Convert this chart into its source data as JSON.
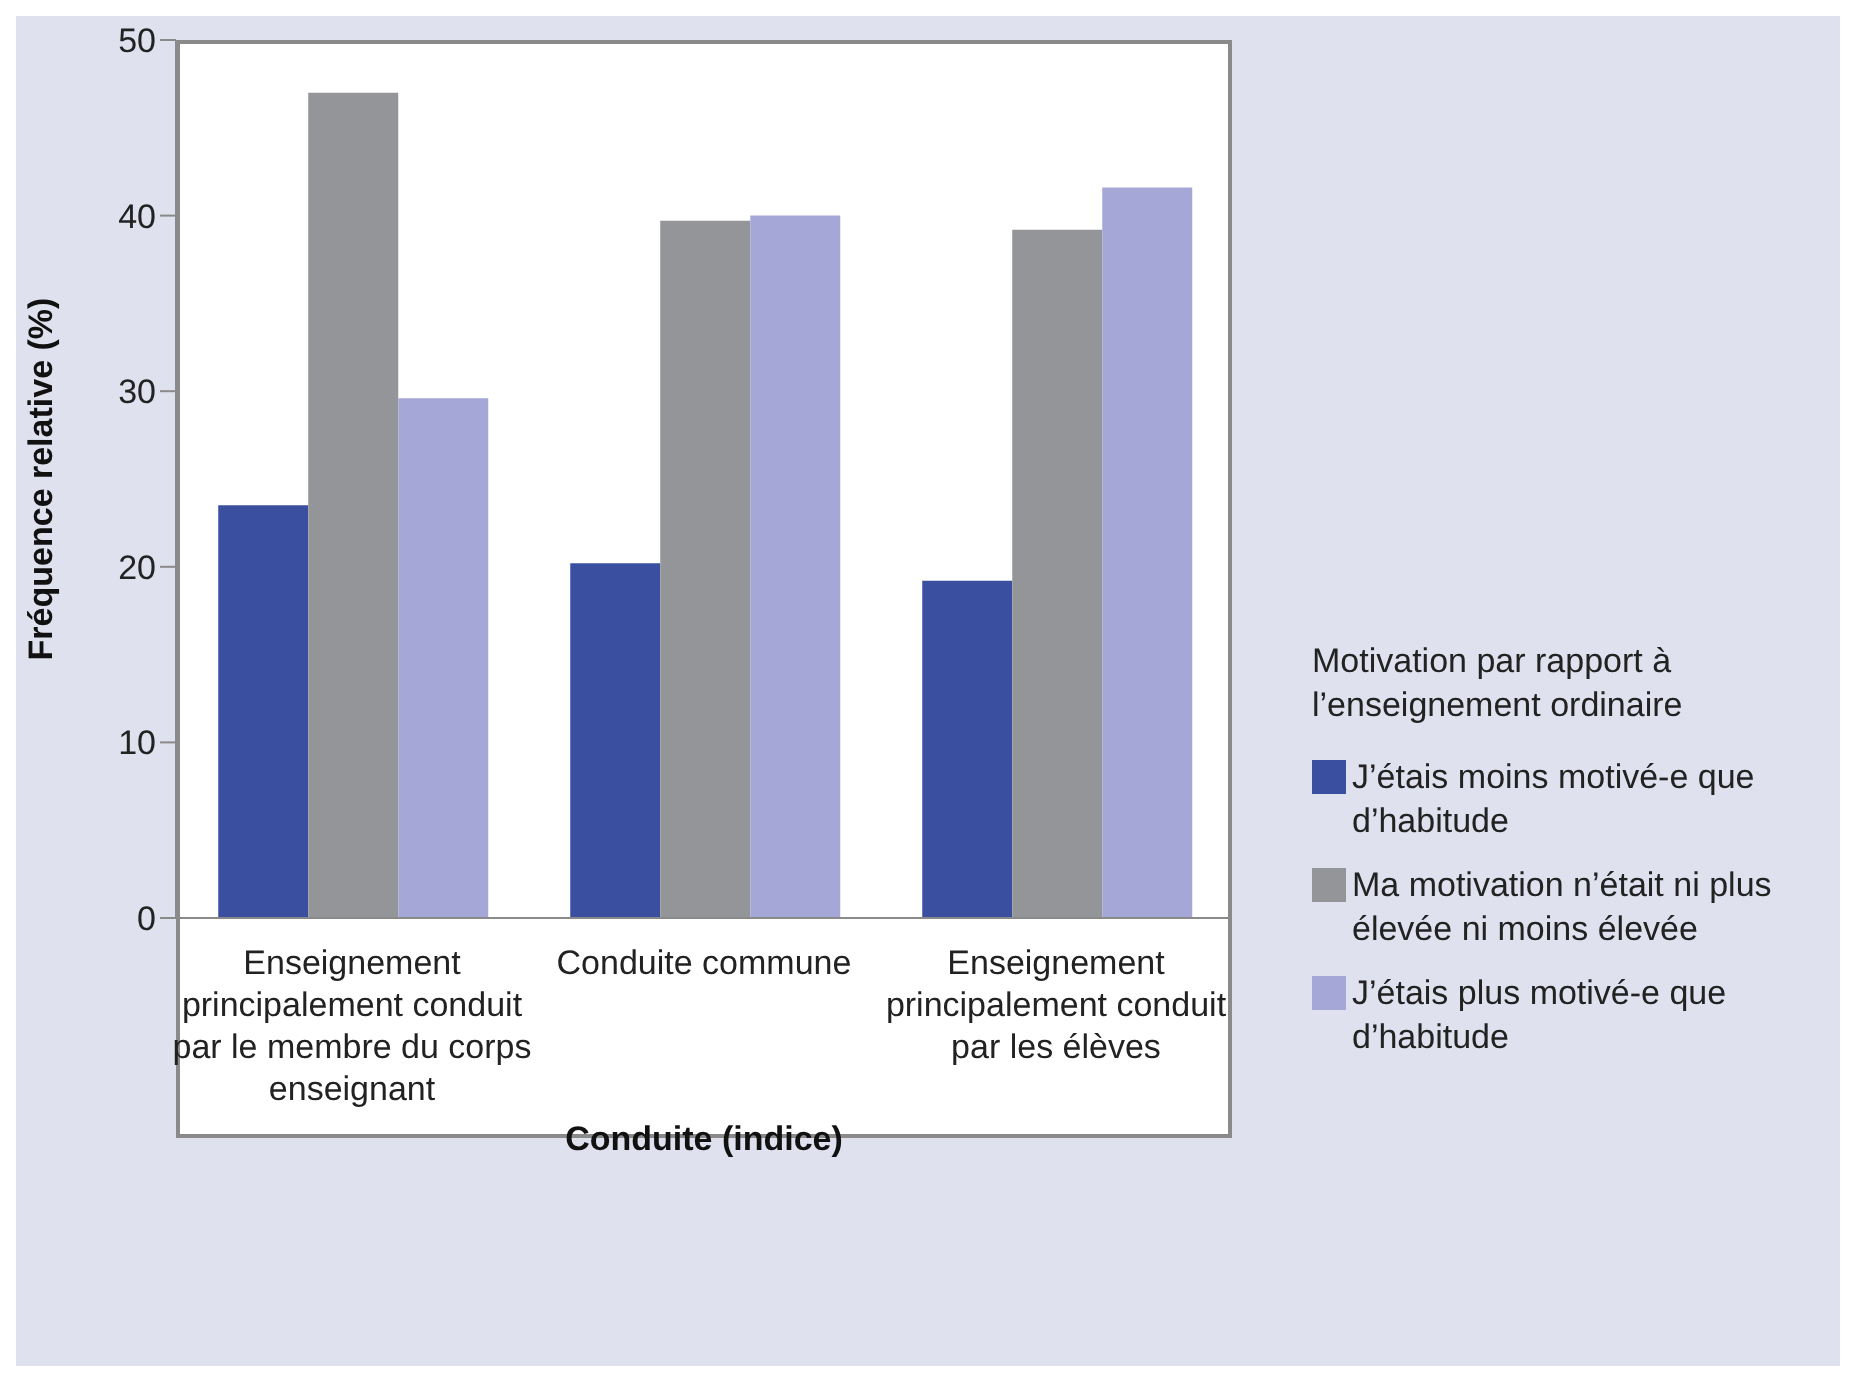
{
  "chart_data": {
    "type": "bar",
    "xlabel": "Conduite (indice)",
    "ylabel": "Fréquence relative (%)",
    "legend_title": "Motivation par rapport à l’enseignement ordinaire",
    "categories": [
      "Enseignement principalement conduit par le membre du corps enseignant",
      "Conduite commune",
      "Enseignement principalement conduit par les élèves"
    ],
    "series": [
      {
        "name": "J’étais moins motivé-e que d’habitude",
        "color": "#3a4fa0",
        "values": [
          23.5,
          20.2,
          19.2
        ]
      },
      {
        "name": "Ma motivation n’était ni plus élevée ni moins élevée",
        "color": "#939598",
        "values": [
          47.0,
          39.7,
          39.2
        ]
      },
      {
        "name": "J’étais plus motivé-e que d’habitude",
        "color": "#a5a8d6",
        "values": [
          29.6,
          40.0,
          41.6
        ]
      }
    ],
    "ylim": [
      0,
      50
    ],
    "yticks": [
      0,
      10,
      20,
      30,
      40,
      50
    ],
    "grid": false,
    "legend": "right"
  }
}
